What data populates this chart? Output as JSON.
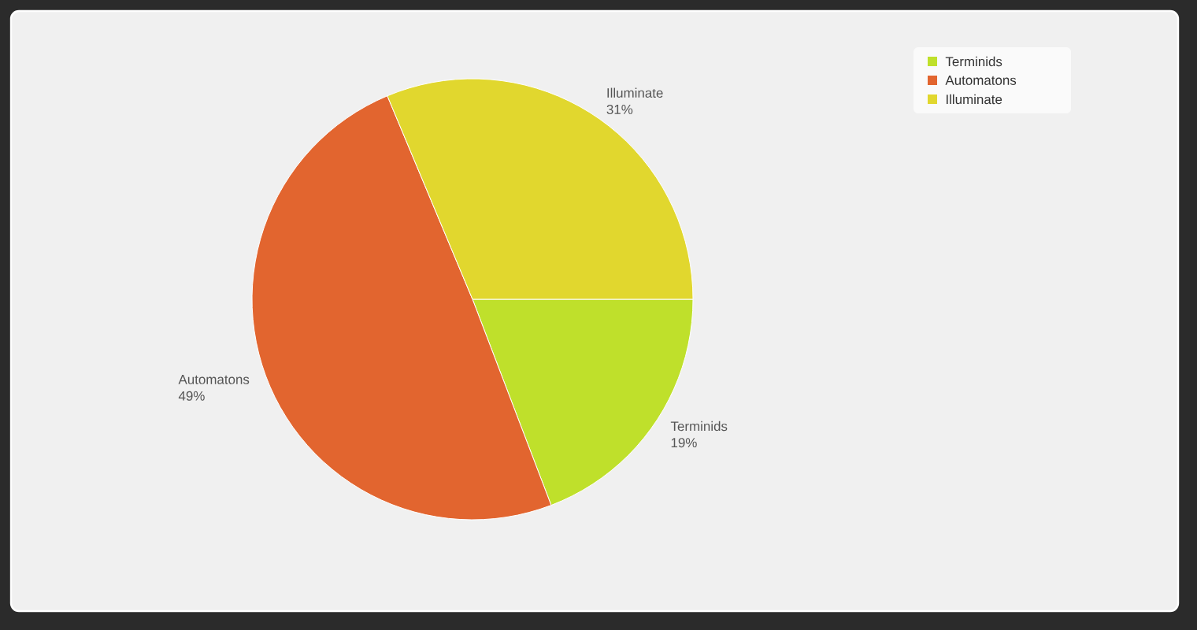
{
  "chart_data": {
    "type": "pie",
    "categories": [
      "Terminids",
      "Automatons",
      "Illuminate"
    ],
    "values": [
      19,
      49,
      31
    ],
    "value_labels": [
      "19%",
      "49%",
      "31%"
    ],
    "colors": [
      "#bfe02b",
      "#e2652f",
      "#e1d72e"
    ],
    "legend": "top right"
  }
}
